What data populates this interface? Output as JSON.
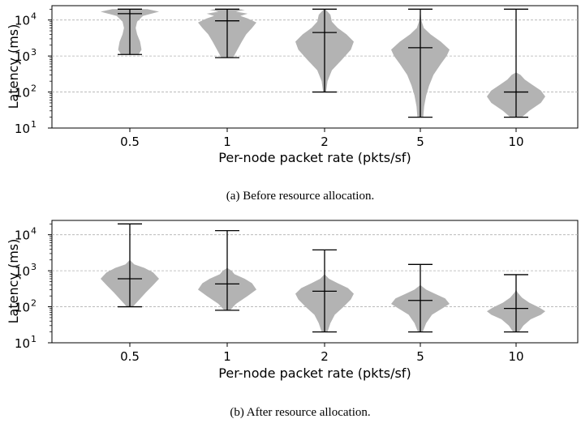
{
  "chart_data": [
    {
      "type": "violin",
      "caption": "(a) Before resource allocation.",
      "xlabel": "Per-node packet rate (pkts/sf)",
      "ylabel": "Latency (ms)",
      "yscale": "log",
      "ylim": [
        10,
        25000
      ],
      "yticks": [
        {
          "value": 10,
          "base": "10",
          "exp": "1"
        },
        {
          "value": 100,
          "base": "10",
          "exp": "2"
        },
        {
          "value": 1000,
          "base": "10",
          "exp": "3"
        },
        {
          "value": 10000,
          "base": "10",
          "exp": "4"
        }
      ],
      "grid": "y-dashed",
      "categories": [
        "0.5",
        "1",
        "2",
        "5",
        "10"
      ],
      "violins": [
        {
          "min": 1100,
          "max": 20000,
          "median": 15000,
          "profile": [
            [
              1100,
              0.3
            ],
            [
              1500,
              0.4
            ],
            [
              2500,
              0.35
            ],
            [
              4000,
              0.25
            ],
            [
              6000,
              0.2
            ],
            [
              9000,
              0.25
            ],
            [
              13000,
              0.45
            ],
            [
              17000,
              1.0
            ],
            [
              20000,
              0.6
            ]
          ]
        },
        {
          "min": 900,
          "max": 20000,
          "median": 9500,
          "profile": [
            [
              900,
              0.2
            ],
            [
              1500,
              0.35
            ],
            [
              2500,
              0.5
            ],
            [
              4000,
              0.65
            ],
            [
              6000,
              0.85
            ],
            [
              8500,
              1.0
            ],
            [
              11000,
              0.7
            ],
            [
              13000,
              0.45
            ],
            [
              15000,
              0.7
            ],
            [
              17000,
              0.3
            ],
            [
              19000,
              0.6
            ],
            [
              20000,
              0.4
            ]
          ]
        },
        {
          "min": 100,
          "max": 20000,
          "median": 4500,
          "profile": [
            [
              100,
              0.05
            ],
            [
              200,
              0.1
            ],
            [
              400,
              0.25
            ],
            [
              800,
              0.6
            ],
            [
              1500,
              0.9
            ],
            [
              2500,
              1.0
            ],
            [
              4000,
              0.75
            ],
            [
              6000,
              0.45
            ],
            [
              9000,
              0.25
            ],
            [
              14000,
              0.2
            ],
            [
              20000,
              0.02
            ]
          ]
        },
        {
          "min": 20,
          "max": 20000,
          "median": 1700,
          "profile": [
            [
              20,
              0.1
            ],
            [
              40,
              0.13
            ],
            [
              80,
              0.2
            ],
            [
              150,
              0.3
            ],
            [
              300,
              0.45
            ],
            [
              600,
              0.7
            ],
            [
              1000,
              0.9
            ],
            [
              1500,
              1.0
            ],
            [
              2500,
              0.7
            ],
            [
              4000,
              0.35
            ],
            [
              6000,
              0.12
            ],
            [
              10000,
              0.03
            ],
            [
              20000,
              0.0
            ]
          ]
        },
        {
          "min": 20,
          "max": 20000,
          "median": 100,
          "profile": [
            [
              20,
              0.2
            ],
            [
              30,
              0.45
            ],
            [
              50,
              0.85
            ],
            [
              75,
              1.0
            ],
            [
              110,
              0.85
            ],
            [
              160,
              0.55
            ],
            [
              220,
              0.3
            ],
            [
              300,
              0.15
            ],
            [
              350,
              0.0
            ]
          ]
        }
      ]
    },
    {
      "type": "violin",
      "caption": "(b) After resource allocation.",
      "xlabel": "Per-node packet rate (pkts/sf)",
      "ylabel": "Latency (ms)",
      "yscale": "log",
      "ylim": [
        10,
        25000
      ],
      "yticks": [
        {
          "value": 10,
          "base": "10",
          "exp": "1"
        },
        {
          "value": 100,
          "base": "10",
          "exp": "2"
        },
        {
          "value": 1000,
          "base": "10",
          "exp": "3"
        },
        {
          "value": 10000,
          "base": "10",
          "exp": "4"
        }
      ],
      "grid": "y-dashed",
      "categories": [
        "0.5",
        "1",
        "2",
        "5",
        "10"
      ],
      "violins": [
        {
          "min": 100,
          "max": 20000,
          "median": 600,
          "profile": [
            [
              100,
              0.1
            ],
            [
              150,
              0.3
            ],
            [
              250,
              0.55
            ],
            [
              400,
              0.8
            ],
            [
              600,
              1.0
            ],
            [
              900,
              0.8
            ],
            [
              1200,
              0.5
            ],
            [
              1500,
              0.15
            ],
            [
              2000,
              0.0
            ]
          ]
        },
        {
          "min": 80,
          "max": 13000,
          "median": 430,
          "profile": [
            [
              80,
              0.1
            ],
            [
              120,
              0.3
            ],
            [
              200,
              0.7
            ],
            [
              300,
              1.0
            ],
            [
              450,
              0.85
            ],
            [
              600,
              0.6
            ],
            [
              800,
              0.25
            ],
            [
              1000,
              0.15
            ],
            [
              1200,
              0.0
            ]
          ]
        },
        {
          "min": 20,
          "max": 3800,
          "median": 270,
          "profile": [
            [
              20,
              0.1
            ],
            [
              35,
              0.2
            ],
            [
              60,
              0.35
            ],
            [
              100,
              0.65
            ],
            [
              160,
              0.9
            ],
            [
              230,
              1.0
            ],
            [
              330,
              0.8
            ],
            [
              450,
              0.45
            ],
            [
              600,
              0.15
            ],
            [
              800,
              0.0
            ]
          ]
        },
        {
          "min": 20,
          "max": 1500,
          "median": 150,
          "profile": [
            [
              20,
              0.08
            ],
            [
              35,
              0.2
            ],
            [
              60,
              0.4
            ],
            [
              90,
              0.75
            ],
            [
              120,
              1.0
            ],
            [
              170,
              0.85
            ],
            [
              230,
              0.5
            ],
            [
              300,
              0.2
            ],
            [
              400,
              0.0
            ]
          ]
        },
        {
          "min": 20,
          "max": 780,
          "median": 90,
          "profile": [
            [
              20,
              0.1
            ],
            [
              30,
              0.25
            ],
            [
              45,
              0.5
            ],
            [
              60,
              0.85
            ],
            [
              75,
              1.0
            ],
            [
              95,
              0.8
            ],
            [
              130,
              0.45
            ],
            [
              180,
              0.2
            ],
            [
              250,
              0.05
            ],
            [
              300,
              0.0
            ]
          ]
        }
      ]
    }
  ]
}
